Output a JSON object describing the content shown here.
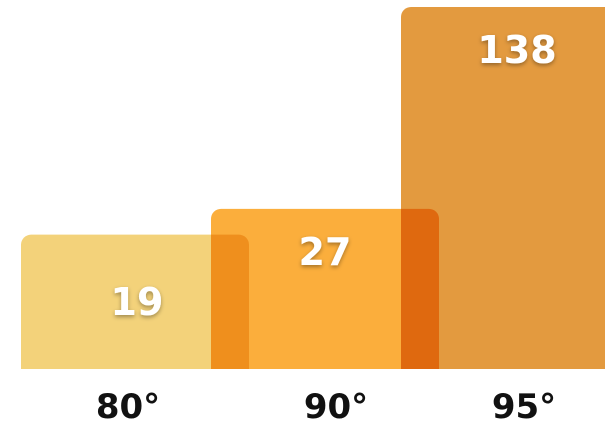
{
  "chart_data": {
    "type": "bar",
    "categories": [
      "80°",
      "90°",
      "95°"
    ],
    "values": [
      19,
      27,
      138
    ],
    "value_labels": [
      "19",
      "27",
      "138"
    ],
    "colors": [
      "#f3d27a",
      "#fbae3c",
      "#e39a3f"
    ],
    "title": "",
    "xlabel": "",
    "ylabel": "",
    "grid": false,
    "legend": "none"
  }
}
